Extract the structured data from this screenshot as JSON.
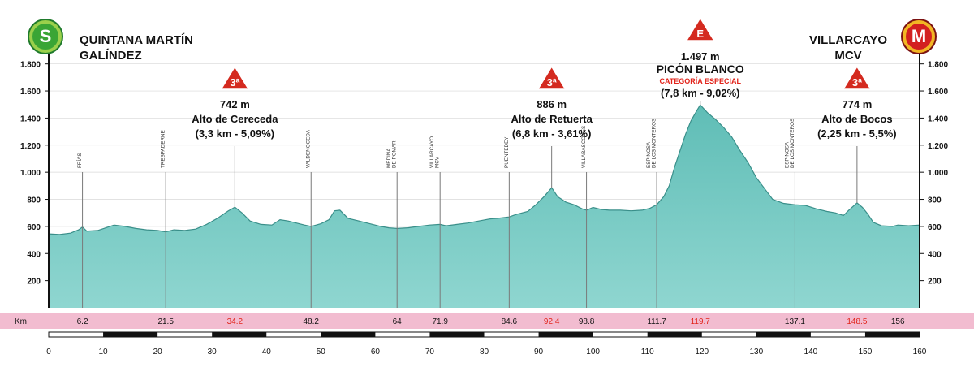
{
  "start": {
    "title_line1": "QUINTANA MARTÍN",
    "title_line2": "GALÍNDEZ",
    "badge": "S"
  },
  "finish": {
    "title_line1": "VILLARCAYO",
    "title_line2": "MCV",
    "badge": "M"
  },
  "colors": {
    "profile": "#6cc6bf",
    "profile_dark": "#3a8f8a",
    "km_bar": "#f2bcd0",
    "climb_km": "#e2231a",
    "climb_badge": "#d42a1f",
    "special": "#e2231a"
  },
  "chart_data": {
    "type": "area",
    "title": "",
    "xlabel": "",
    "ylabel": "",
    "xlim": [
      0,
      160
    ],
    "ylim": [
      0,
      1900
    ],
    "y_ticks": [
      "200",
      "400",
      "600",
      "800",
      "1.000",
      "1.200",
      "1.400",
      "1.600",
      "1.800"
    ],
    "y_tick_values": [
      200,
      400,
      600,
      800,
      1000,
      1200,
      1400,
      1600,
      1800
    ],
    "x_ticks": [
      "0",
      "10",
      "20",
      "30",
      "40",
      "50",
      "60",
      "70",
      "80",
      "90",
      "100",
      "110",
      "120",
      "130",
      "140",
      "150",
      "160"
    ],
    "x_tick_values": [
      0,
      10,
      20,
      30,
      40,
      50,
      60,
      70,
      80,
      90,
      100,
      110,
      120,
      130,
      140,
      150,
      160
    ],
    "km_label": "Km",
    "km_points": [
      {
        "label": "6.2",
        "value": 6.2,
        "climb": false
      },
      {
        "label": "21.5",
        "value": 21.5,
        "climb": false
      },
      {
        "label": "34.2",
        "value": 34.2,
        "climb": true
      },
      {
        "label": "48.2",
        "value": 48.2,
        "climb": false
      },
      {
        "label": "64",
        "value": 64,
        "climb": false
      },
      {
        "label": "71.9",
        "value": 71.9,
        "climb": false
      },
      {
        "label": "84.6",
        "value": 84.6,
        "climb": false
      },
      {
        "label": "92.4",
        "value": 92.4,
        "climb": true
      },
      {
        "label": "98.8",
        "value": 98.8,
        "climb": false
      },
      {
        "label": "111.7",
        "value": 111.7,
        "climb": false
      },
      {
        "label": "119.7",
        "value": 119.7,
        "climb": true
      },
      {
        "label": "137.1",
        "value": 137.1,
        "climb": false
      },
      {
        "label": "148.5",
        "value": 148.5,
        "climb": true
      },
      {
        "label": "156",
        "value": 156,
        "climb": false
      }
    ],
    "towns": [
      {
        "lines": [
          "FRÍAS"
        ],
        "km": 6.2,
        "alt": 590
      },
      {
        "lines": [
          "TRESPADERNE"
        ],
        "km": 21.5,
        "alt": 560
      },
      {
        "lines": [
          "VALDENOCEDA"
        ],
        "km": 48.2,
        "alt": 600
      },
      {
        "lines": [
          "MEDINA",
          "DE POMAR"
        ],
        "km": 64,
        "alt": 585
      },
      {
        "lines": [
          "VILLARCAYO",
          "MCV"
        ],
        "km": 71.9,
        "alt": 610
      },
      {
        "lines": [
          "PUENTEDEY"
        ],
        "km": 84.6,
        "alt": 670
      },
      {
        "lines": [
          "VILLABASCONES"
        ],
        "km": 98.8,
        "alt": 720
      },
      {
        "lines": [
          "ESPINOSA",
          "DE LOS MONTEROS"
        ],
        "km": 111.7,
        "alt": 760
      },
      {
        "lines": [
          "ESPINOSA",
          "DE LOS MONTEROS"
        ],
        "km": 137.1,
        "alt": 760
      }
    ],
    "climbs": [
      {
        "cat": "3ª",
        "km": 34.2,
        "alt": 742,
        "altitude": "742 m",
        "name": "Alto de Cereceda",
        "detail": "(3,3 km - 5,09%)",
        "special": ""
      },
      {
        "cat": "3ª",
        "km": 92.4,
        "alt": 886,
        "altitude": "886 m",
        "name": "Alto de Retuerta",
        "detail": "(6,8 km - 3,61%)",
        "special": ""
      },
      {
        "cat": "E",
        "km": 119.7,
        "alt": 1497,
        "altitude": "1.497 m",
        "name": "PICÓN BLANCO",
        "detail": "(7,8 km - 9,02%)",
        "special": "CATEGORÍA ESPECIAL"
      },
      {
        "cat": "3ª",
        "km": 148.5,
        "alt": 774,
        "altitude": "774 m",
        "name": "Alto de Bocos",
        "detail": "(2,25 km - 5,5%)",
        "special": ""
      }
    ],
    "profile": [
      [
        0,
        545
      ],
      [
        2,
        540
      ],
      [
        4,
        550
      ],
      [
        5.5,
        575
      ],
      [
        6.2,
        595
      ],
      [
        7,
        565
      ],
      [
        9,
        570
      ],
      [
        10.5,
        590
      ],
      [
        12,
        610
      ],
      [
        14,
        600
      ],
      [
        16,
        585
      ],
      [
        18,
        575
      ],
      [
        20,
        570
      ],
      [
        21.5,
        560
      ],
      [
        23,
        575
      ],
      [
        25,
        570
      ],
      [
        27,
        580
      ],
      [
        29,
        615
      ],
      [
        31,
        660
      ],
      [
        33,
        715
      ],
      [
        34.2,
        742
      ],
      [
        35.5,
        700
      ],
      [
        37,
        640
      ],
      [
        39,
        615
      ],
      [
        41,
        610
      ],
      [
        42.5,
        650
      ],
      [
        44,
        640
      ],
      [
        45.5,
        625
      ],
      [
        47,
        610
      ],
      [
        48.2,
        600
      ],
      [
        50,
        620
      ],
      [
        51.5,
        650
      ],
      [
        52.5,
        715
      ],
      [
        53.5,
        720
      ],
      [
        55,
        660
      ],
      [
        57,
        640
      ],
      [
        59,
        620
      ],
      [
        61,
        600
      ],
      [
        62.5,
        590
      ],
      [
        64,
        585
      ],
      [
        66,
        590
      ],
      [
        68,
        600
      ],
      [
        70,
        610
      ],
      [
        71.9,
        615
      ],
      [
        73,
        605
      ],
      [
        75,
        615
      ],
      [
        77,
        625
      ],
      [
        79,
        640
      ],
      [
        81,
        655
      ],
      [
        82.5,
        660
      ],
      [
        84.6,
        670
      ],
      [
        86,
        690
      ],
      [
        88,
        710
      ],
      [
        89.5,
        760
      ],
      [
        91,
        820
      ],
      [
        92.4,
        886
      ],
      [
        93.5,
        820
      ],
      [
        95,
        780
      ],
      [
        96.5,
        760
      ],
      [
        98,
        730
      ],
      [
        98.8,
        720
      ],
      [
        100,
        740
      ],
      [
        101.5,
        725
      ],
      [
        103,
        720
      ],
      [
        105,
        720
      ],
      [
        107,
        715
      ],
      [
        109,
        720
      ],
      [
        110.5,
        735
      ],
      [
        111.7,
        760
      ],
      [
        113,
        820
      ],
      [
        114,
        900
      ],
      [
        115,
        1040
      ],
      [
        116,
        1160
      ],
      [
        117,
        1280
      ],
      [
        118,
        1380
      ],
      [
        119,
        1450
      ],
      [
        119.7,
        1497
      ],
      [
        121,
        1440
      ],
      [
        122.5,
        1390
      ],
      [
        124,
        1330
      ],
      [
        125.5,
        1260
      ],
      [
        127,
        1160
      ],
      [
        128.5,
        1070
      ],
      [
        130,
        960
      ],
      [
        131.5,
        880
      ],
      [
        133,
        800
      ],
      [
        135,
        770
      ],
      [
        137.1,
        760
      ],
      [
        139,
        755
      ],
      [
        141,
        730
      ],
      [
        143,
        710
      ],
      [
        144.5,
        700
      ],
      [
        146,
        680
      ],
      [
        147,
        720
      ],
      [
        148.5,
        774
      ],
      [
        149.5,
        740
      ],
      [
        150.5,
        690
      ],
      [
        151.5,
        630
      ],
      [
        153,
        605
      ],
      [
        155,
        600
      ],
      [
        156,
        610
      ],
      [
        158,
        605
      ],
      [
        160,
        610
      ]
    ]
  }
}
